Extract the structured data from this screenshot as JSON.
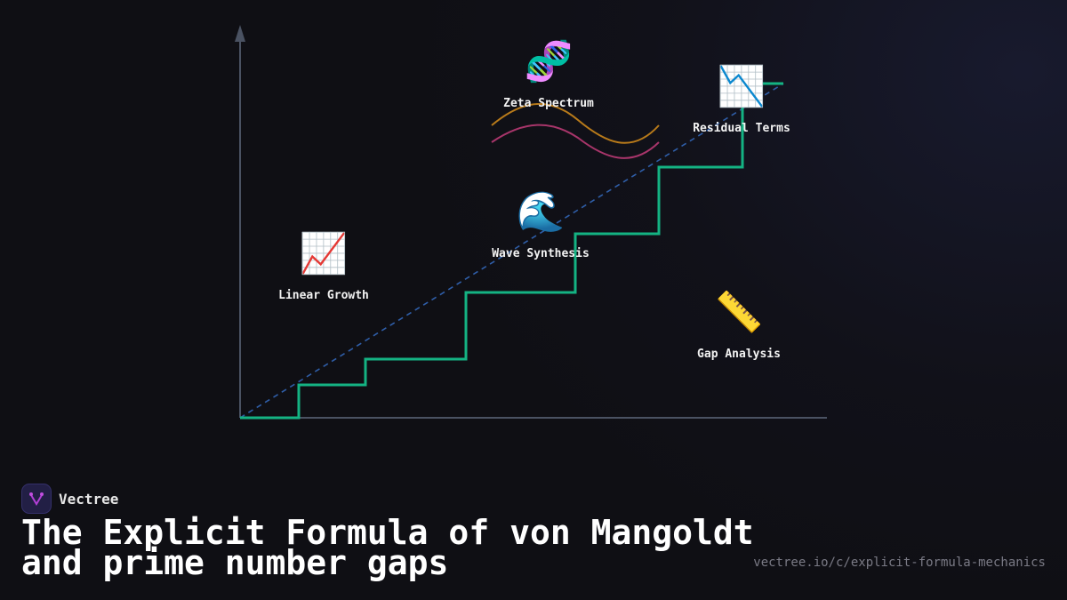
{
  "nodes": [
    {
      "label": "Zeta Spectrum",
      "icon": "dna-icon",
      "glyph": "🧬"
    },
    {
      "label": "Residual Terms",
      "icon": "chart-decreasing-icon",
      "glyph": "📉"
    },
    {
      "label": "Wave Synthesis",
      "icon": "water-wave-icon",
      "glyph": "🌊"
    },
    {
      "label": "Linear Growth",
      "icon": "chart-increasing-icon",
      "glyph": "📈"
    },
    {
      "label": "Gap Analysis",
      "icon": "ruler-icon",
      "glyph": "📏"
    }
  ],
  "colors": {
    "staircase": "#14b383",
    "dashed": "#2f5ea8",
    "axis": "#4a5262",
    "wave1": "#b87a1a",
    "wave2": "#a8356a"
  },
  "brand": {
    "name": "Vectree"
  },
  "title": {
    "line1": "The Explicit Formula of von Mangoldt",
    "line2": "and prime number gaps"
  },
  "url": "vectree.io/c/explicit-formula-mechanics"
}
